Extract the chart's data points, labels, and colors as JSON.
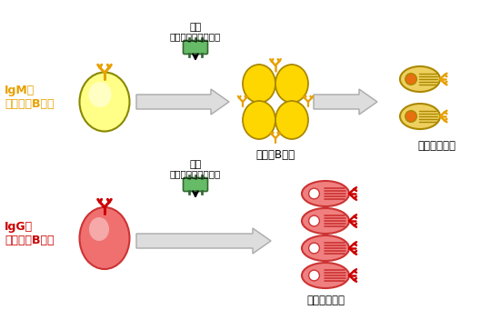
{
  "bg_color": "#ffffff",
  "top_label_igm": "IgM型",
  "top_label_naive": "ナイーブB細胞",
  "top_label_color": "#E8A000",
  "antigen_label1": "抗原",
  "antigen_label2": "（細菌・ウイルス）",
  "germinal_label": "胚中心B細胞",
  "antibody_label_top": "抗体産生細胞",
  "antibody_label_bottom": "抗体産生細胞",
  "bottom_label_igg": "IgG型",
  "bottom_label_memory": "メモリーB細胞",
  "bottom_label_color": "#CC0000",
  "naive_face": "#FFFF88",
  "naive_edge": "#888800",
  "memory_face": "#F07070",
  "memory_edge": "#CC3333",
  "germinal_face": "#FFD700",
  "germinal_edge": "#AA8800",
  "antigen_face": "#66BB66",
  "antigen_edge": "#336633",
  "plasma_top_face": "#EED060",
  "plasma_top_edge": "#AA8800",
  "plasma_top_inner": "#E87010",
  "plasma_bot_face": "#F08080",
  "plasma_bot_edge": "#CC3333",
  "plasma_bot_inner": "#FFFFFF",
  "arrow_face": "#DDDDDD",
  "arrow_edge": "#AAAAAA",
  "antibody_top_color": "#E8A000",
  "antibody_bot_color": "#CC0000"
}
